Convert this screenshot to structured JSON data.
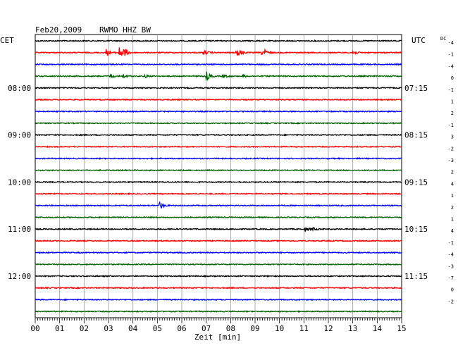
{
  "header": {
    "date": "Feb20,2009",
    "station": "RWMO HHZ BW",
    "left_timezone": "CET",
    "right_timezone": "UTC",
    "dc_label": "DC"
  },
  "chart_data": {
    "type": "line",
    "xlabel": "Zeit [min]",
    "xlim": [
      0,
      15
    ],
    "x_ticks": [
      "00",
      "01",
      "02",
      "03",
      "04",
      "05",
      "06",
      "07",
      "08",
      "09",
      "10",
      "11",
      "12",
      "13",
      "14",
      "15"
    ],
    "left_time_labels": [
      {
        "trace": 4,
        "label": "08:00"
      },
      {
        "trace": 8,
        "label": "09:00"
      },
      {
        "trace": 12,
        "label": "10:00"
      },
      {
        "trace": 16,
        "label": "11:00"
      },
      {
        "trace": 20,
        "label": "12:00"
      }
    ],
    "right_time_labels": [
      {
        "trace": 4,
        "label": "07:15"
      },
      {
        "trace": 8,
        "label": "08:15"
      },
      {
        "trace": 12,
        "label": "09:15"
      },
      {
        "trace": 16,
        "label": "10:15"
      },
      {
        "trace": 20,
        "label": "11:15"
      }
    ],
    "trace_colors": [
      "#000000",
      "#ff0000",
      "#0000ff",
      "#006400"
    ],
    "dc_offsets": [
      "-4",
      "-1",
      "-4",
      "0",
      "-1",
      "1",
      "2",
      "-1",
      "3",
      "-2",
      "-3",
      "2",
      "4",
      "1",
      "2",
      "1",
      "4",
      "-1",
      "-4",
      "-3",
      "-7",
      "0",
      "-2"
    ],
    "traces": [
      {
        "index": 0,
        "color": "#000000",
        "events": []
      },
      {
        "index": 1,
        "color": "#ff0000",
        "events": [
          {
            "t": 2.9,
            "amp": 5
          },
          {
            "t": 3.45,
            "amp": 9
          },
          {
            "t": 3.65,
            "amp": 6
          },
          {
            "t": 6.9,
            "amp": 4
          },
          {
            "t": 8.25,
            "amp": 10
          },
          {
            "t": 9.3,
            "amp": 8
          },
          {
            "t": 13.0,
            "amp": 3
          }
        ]
      },
      {
        "index": 2,
        "color": "#0000ff",
        "events": []
      },
      {
        "index": 3,
        "color": "#006400",
        "events": [
          {
            "t": 3.1,
            "amp": 3
          },
          {
            "t": 3.6,
            "amp": 3
          },
          {
            "t": 4.5,
            "amp": 2
          },
          {
            "t": 7.0,
            "amp": 7
          },
          {
            "t": 7.7,
            "amp": 3
          },
          {
            "t": 8.5,
            "amp": 2
          }
        ]
      },
      {
        "index": 4,
        "color": "#000000",
        "events": []
      },
      {
        "index": 5,
        "color": "#ff0000",
        "events": []
      },
      {
        "index": 6,
        "color": "#0000ff",
        "events": []
      },
      {
        "index": 7,
        "color": "#006400",
        "events": []
      },
      {
        "index": 8,
        "color": "#000000",
        "events": []
      },
      {
        "index": 9,
        "color": "#ff0000",
        "events": []
      },
      {
        "index": 10,
        "color": "#0000ff",
        "events": []
      },
      {
        "index": 11,
        "color": "#006400",
        "events": []
      },
      {
        "index": 12,
        "color": "#000000",
        "events": []
      },
      {
        "index": 13,
        "color": "#ff0000",
        "events": []
      },
      {
        "index": 14,
        "color": "#0000ff",
        "events": [
          {
            "t": 5.1,
            "amp": 5
          }
        ]
      },
      {
        "index": 15,
        "color": "#006400",
        "events": []
      },
      {
        "index": 16,
        "color": "#000000",
        "events": [
          {
            "t": 11.05,
            "amp": 3
          },
          {
            "t": 11.4,
            "amp": 2
          }
        ]
      },
      {
        "index": 17,
        "color": "#ff0000",
        "events": []
      },
      {
        "index": 18,
        "color": "#0000ff",
        "events": []
      },
      {
        "index": 19,
        "color": "#006400",
        "events": []
      },
      {
        "index": 20,
        "color": "#000000",
        "events": []
      },
      {
        "index": 21,
        "color": "#ff0000",
        "events": []
      },
      {
        "index": 22,
        "color": "#0000ff",
        "events": []
      },
      {
        "index": 23,
        "color": "#006400",
        "events": []
      }
    ]
  }
}
